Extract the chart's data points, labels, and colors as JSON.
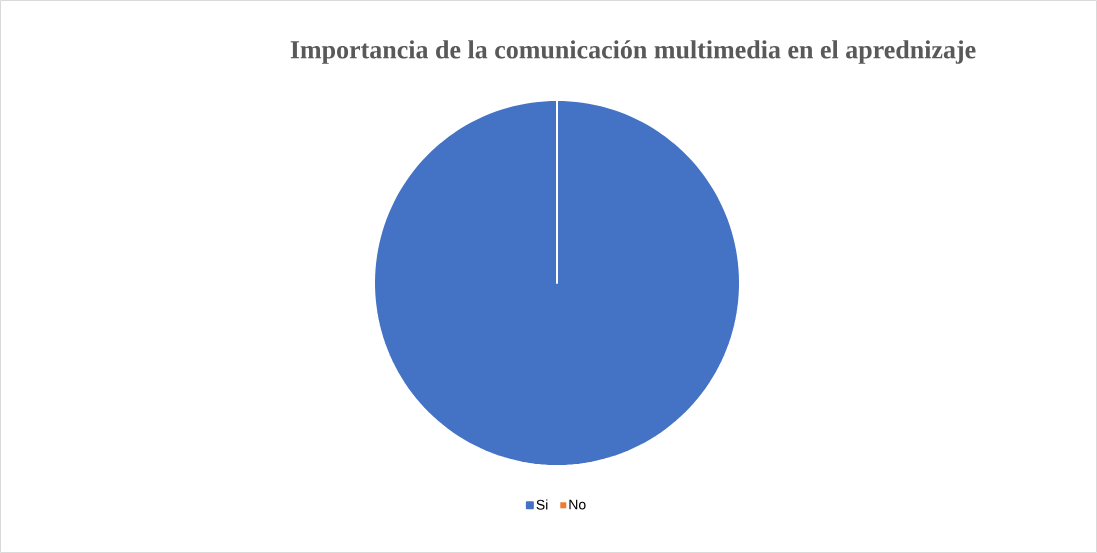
{
  "chart_data": {
    "type": "pie",
    "title": "Importancia de la comunicación multimedia en el aprednizaje",
    "categories": [
      "Si",
      "No"
    ],
    "values": [
      100,
      0
    ],
    "colors": [
      "#4472c4",
      "#ed7d31"
    ],
    "legend": "bottom"
  }
}
